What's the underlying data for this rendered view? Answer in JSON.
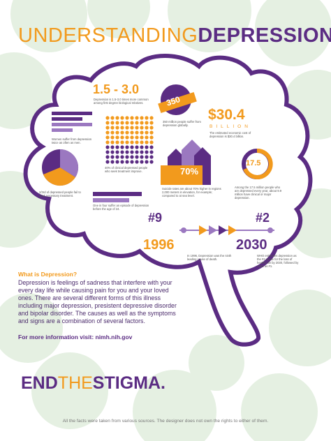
{
  "title": {
    "light": "UNDERSTANDING",
    "bold": "DEPRESSION"
  },
  "stats": {
    "ratio": {
      "value": "1.5 - 3.0",
      "caption": "Depression is 1.5-3.0 times more common among first degree biological relatives."
    },
    "people": {
      "value": "350",
      "caption": "350 million people suffer from depression globally."
    },
    "cost": {
      "value": "$30.4",
      "unit": "BILLION",
      "caption": "The estimated economic cost of depression is $30.4 billion."
    },
    "women": {
      "caption": "Women suffer from depression twice as often as men."
    },
    "treatment": {
      "caption": "40% of clinical depressed people who seek treatment improve."
    },
    "suicide": {
      "value": "70%",
      "percent": 70,
      "caption": "Suicide rates are about 70% higher in regions 2,000 meters in elevation, for example; compared to at sea level."
    },
    "every_year": {
      "value": "17.5",
      "caption": "Among the 17.5 million people who are depressed every year, about 9.9 million have clinical or major depression."
    },
    "untreated": {
      "caption": "2/3rd of depressed people fail to seek necessary treatment."
    },
    "before24": {
      "caption": "One in four suffer an episode of depression before the age of 24."
    }
  },
  "timeline": {
    "rank1": "#9",
    "year1": "1996",
    "caption1": "In 1996, Depression was the ninth leading cause of death.",
    "rank2": "#2",
    "year2": "2030",
    "caption2": "WHO estimates depression as the #2 cause for the loss of healthy life by 2030, followed by AIDS as #1."
  },
  "info": {
    "heading": "What is Depression?",
    "body": "Depression is feelings of sadness that interfere with your every day life while causing pain for you and your loved ones. There are several different forms of this illness including major depression, presistent depressive disorder and bipolar disorder. The causes as well as the symptoms and signs are a combination of several factors.",
    "more": "For more information visit: nimh.nih.gov"
  },
  "slogan": {
    "part1": "END",
    "part2": "THE",
    "part3": "STIGMA."
  },
  "credit": "All the facts were taken from various sources. The designer does not own the rights to either of them.",
  "colors": {
    "purple": "#5b2c83",
    "orange": "#f29a1d",
    "lavender": "#9b78c0",
    "green_bg": "#e3efe0"
  }
}
